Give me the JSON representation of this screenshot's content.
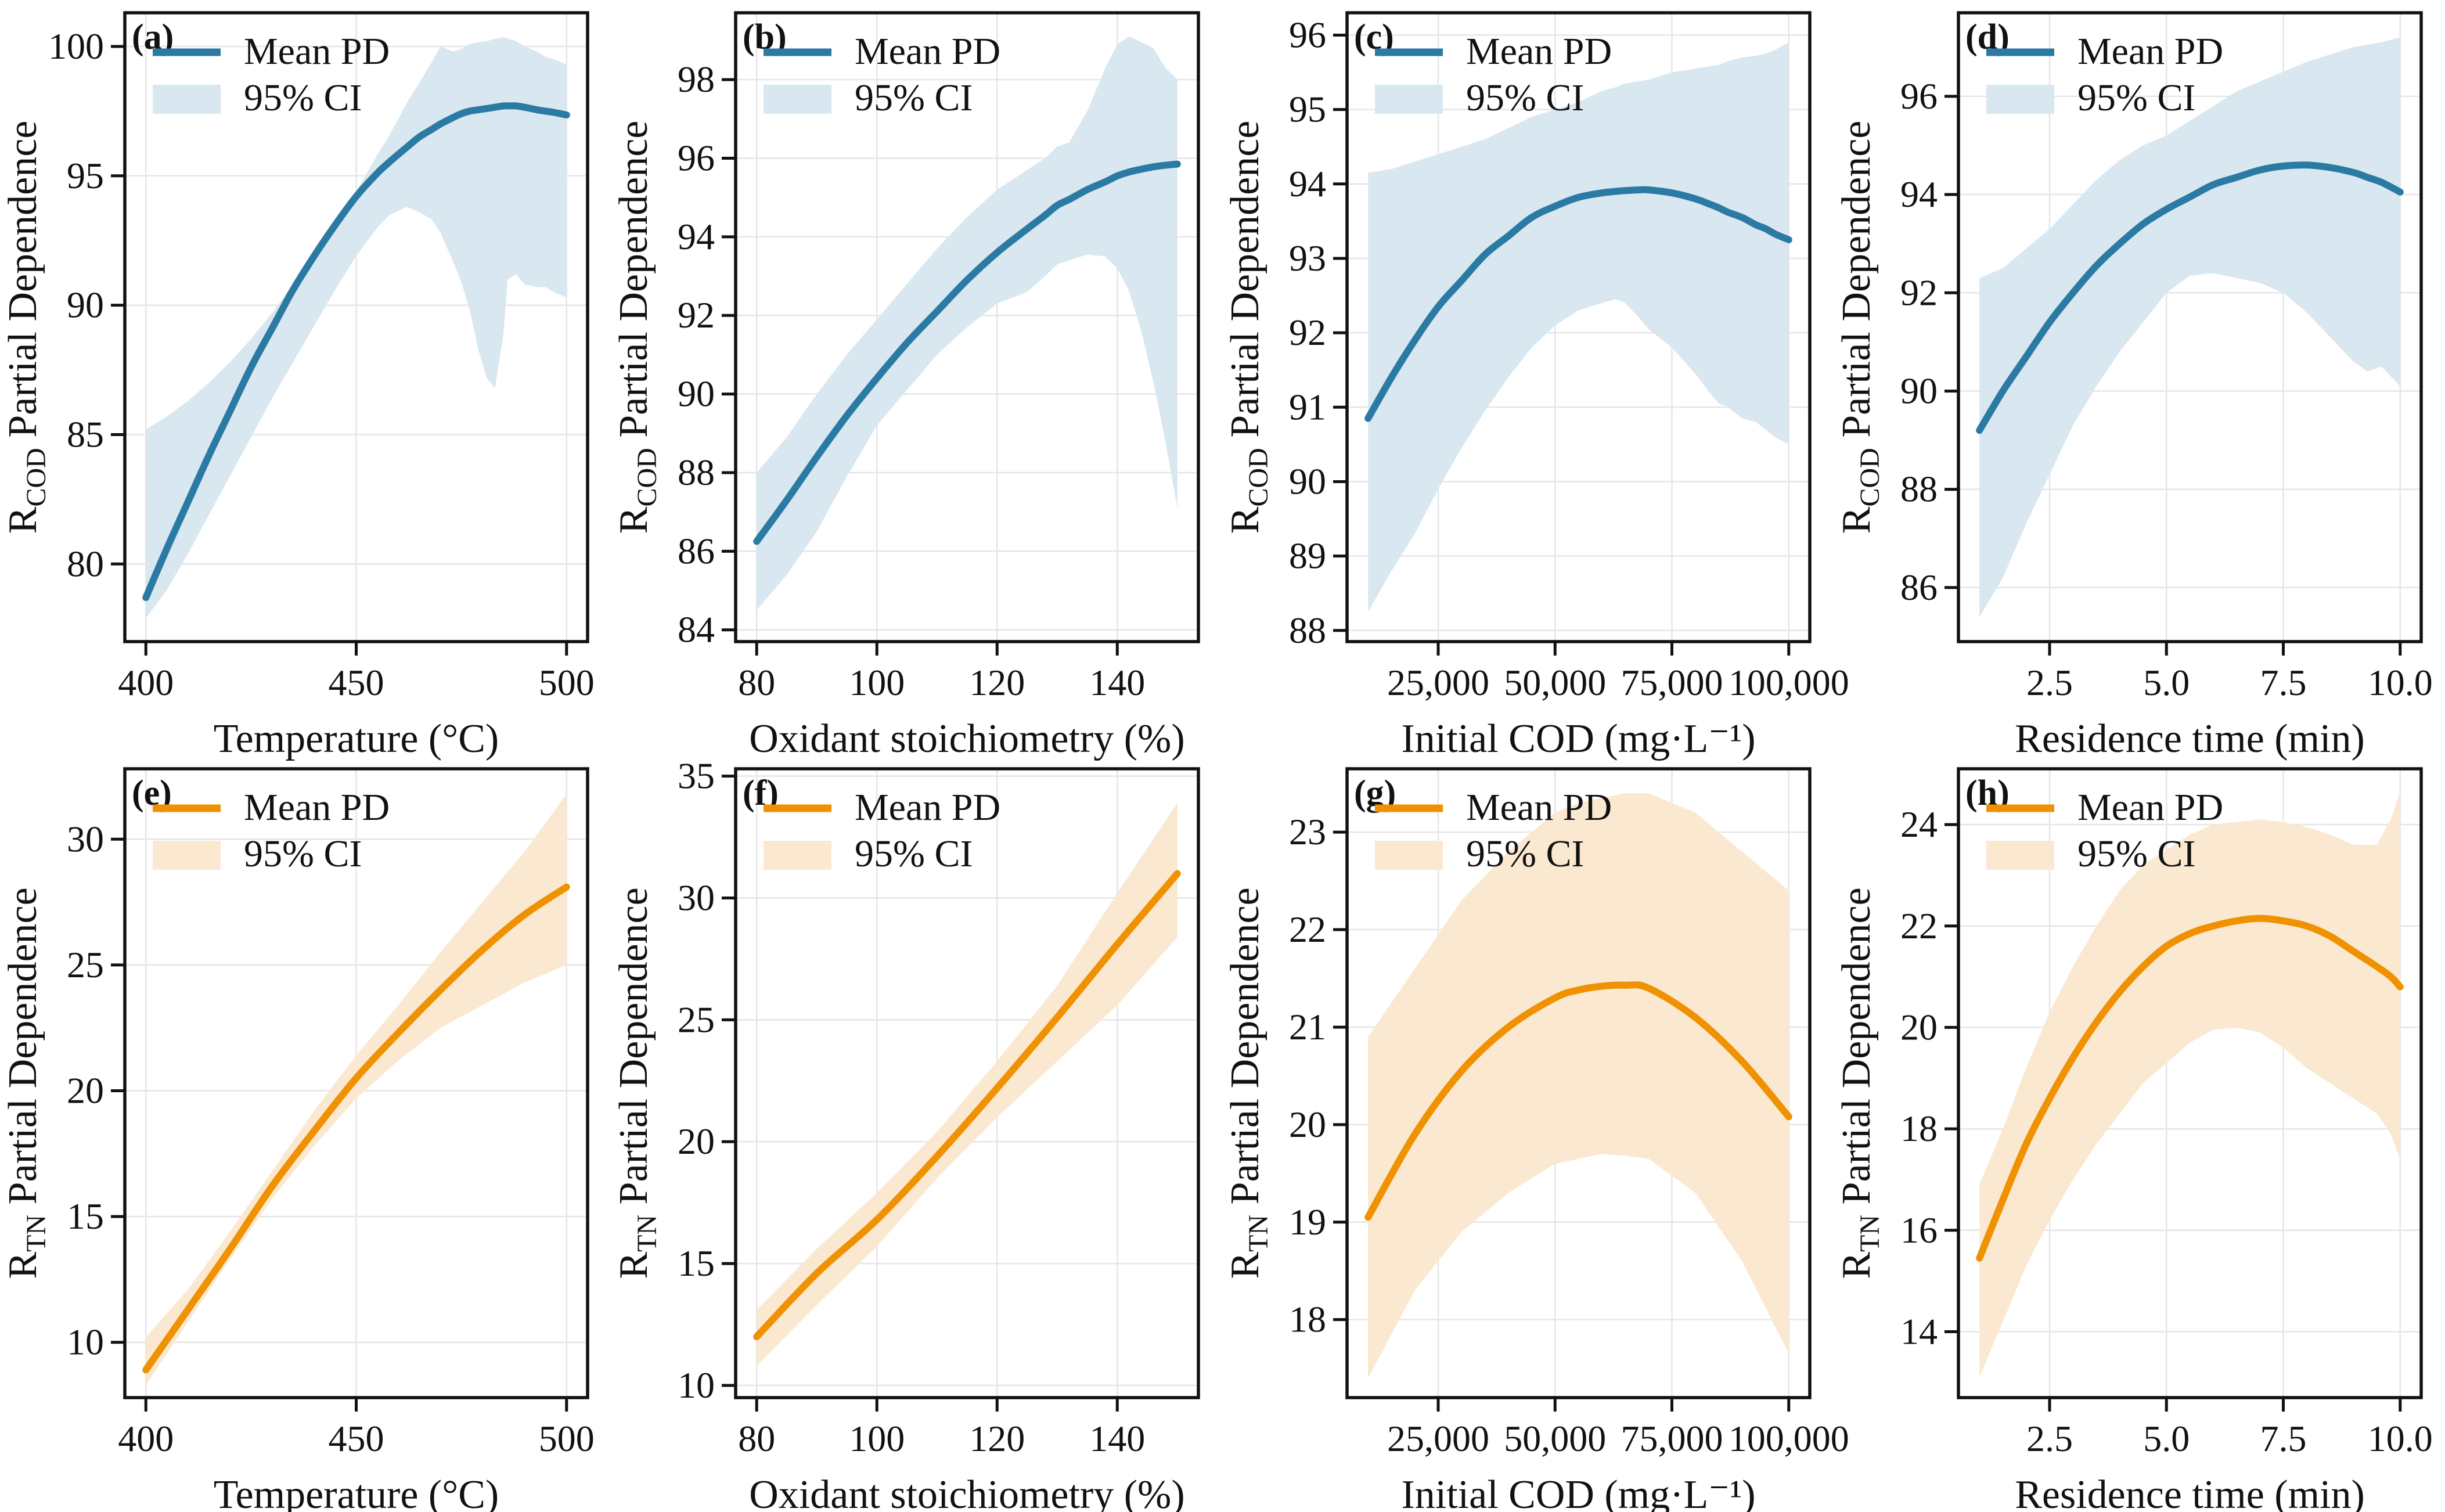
{
  "figure": {
    "background": "#ffffff",
    "colors": {
      "blue_line": "#2b7aa3",
      "blue_band": "#d9e7f0",
      "orange_line": "#ef9100",
      "orange_band": "#fae8d0",
      "grid": "#e6e6e6",
      "spine": "#111111",
      "text": "#111111"
    },
    "legend": {
      "mean_label": "Mean PD",
      "ci_label": "95% CI"
    }
  },
  "chart_data": [
    {
      "id": "a",
      "type": "line",
      "panel_label": "(a)",
      "palette": "blue",
      "xlabel": "Temperature (°C)",
      "ylabel_prefix": "R",
      "ylabel_sub": "COD",
      "ylabel_suffix": " Partial Dependence",
      "legend": [
        "Mean PD",
        "95% CI"
      ],
      "legend_position": "upper left",
      "grid": true,
      "xlim": [
        395,
        505
      ],
      "ylim": [
        77.0,
        101.3
      ],
      "xticks": [
        [
          400,
          "400"
        ],
        [
          450,
          "450"
        ],
        [
          500,
          "500"
        ]
      ],
      "yticks": [
        [
          80,
          "80"
        ],
        [
          85,
          "85"
        ],
        [
          90,
          "90"
        ],
        [
          95,
          "95"
        ],
        [
          100,
          "100"
        ]
      ],
      "x": [
        400,
        405,
        410,
        415,
        420,
        425,
        430,
        435,
        440,
        445,
        450,
        455,
        458,
        462,
        465,
        468,
        470,
        473,
        475,
        477,
        479,
        481,
        483,
        485,
        486,
        488,
        490,
        493,
        495,
        497,
        500
      ],
      "mean": [
        78.7,
        80.6,
        82.4,
        84.2,
        85.9,
        87.6,
        89.1,
        90.6,
        91.9,
        93.1,
        94.2,
        95.1,
        95.55,
        96.1,
        96.5,
        96.8,
        97.0,
        97.25,
        97.4,
        97.5,
        97.55,
        97.6,
        97.65,
        97.7,
        97.7,
        97.7,
        97.65,
        97.55,
        97.5,
        97.45,
        97.35
      ],
      "lower": [
        77.9,
        79.0,
        80.4,
        81.9,
        83.4,
        84.9,
        86.4,
        87.8,
        89.2,
        90.6,
        91.9,
        93.0,
        93.5,
        93.8,
        93.6,
        93.3,
        92.8,
        91.7,
        90.9,
        89.8,
        88.3,
        87.2,
        86.8,
        88.9,
        91.0,
        91.2,
        90.8,
        90.7,
        90.7,
        90.5,
        90.3
      ],
      "upper": [
        85.2,
        85.7,
        86.3,
        87.0,
        87.8,
        88.7,
        89.7,
        90.8,
        91.9,
        93.1,
        94.4,
        95.8,
        96.6,
        97.8,
        98.6,
        99.4,
        100.0,
        99.8,
        99.9,
        100.1,
        100.15,
        100.2,
        100.3,
        100.35,
        100.3,
        100.2,
        100.0,
        99.8,
        99.6,
        99.5,
        99.3
      ]
    },
    {
      "id": "b",
      "type": "line",
      "panel_label": "(b)",
      "palette": "blue",
      "xlabel": "Oxidant stoichiometry (%)",
      "ylabel_prefix": "R",
      "ylabel_sub": "COD",
      "ylabel_suffix": " Partial Dependence",
      "legend": [
        "Mean PD",
        "95% CI"
      ],
      "legend_position": "upper left",
      "grid": true,
      "xlim": [
        76.5,
        153.5
      ],
      "ylim": [
        83.7,
        99.7
      ],
      "xticks": [
        [
          80,
          "80"
        ],
        [
          100,
          "100"
        ],
        [
          120,
          "120"
        ],
        [
          140,
          "140"
        ]
      ],
      "yticks": [
        [
          84,
          "84"
        ],
        [
          86,
          "86"
        ],
        [
          88,
          "88"
        ],
        [
          90,
          "90"
        ],
        [
          92,
          "92"
        ],
        [
          94,
          "94"
        ],
        [
          96,
          "96"
        ],
        [
          98,
          "98"
        ]
      ],
      "x": [
        80,
        85,
        90,
        95,
        100,
        105,
        110,
        115,
        120,
        125,
        128,
        130,
        132,
        135,
        138,
        140,
        142,
        144,
        146,
        148,
        150
      ],
      "mean": [
        86.25,
        87.3,
        88.4,
        89.45,
        90.4,
        91.3,
        92.1,
        92.9,
        93.6,
        94.2,
        94.55,
        94.8,
        94.95,
        95.2,
        95.4,
        95.55,
        95.65,
        95.72,
        95.78,
        95.82,
        95.85
      ],
      "lower": [
        84.5,
        85.4,
        86.5,
        87.9,
        89.2,
        90.1,
        91.0,
        91.7,
        92.3,
        92.6,
        93.0,
        93.3,
        93.4,
        93.55,
        93.5,
        93.2,
        92.6,
        91.6,
        90.3,
        88.8,
        87.1
      ],
      "upper": [
        88.0,
        88.9,
        90.0,
        91.0,
        91.9,
        92.8,
        93.7,
        94.5,
        95.2,
        95.7,
        96.0,
        96.3,
        96.4,
        97.2,
        98.3,
        98.9,
        99.1,
        98.95,
        98.8,
        98.3,
        98.0
      ]
    },
    {
      "id": "c",
      "type": "line",
      "panel_label": "(c)",
      "palette": "blue",
      "xlabel": "Initial COD (mg·L⁻¹)",
      "ylabel_prefix": "R",
      "ylabel_sub": "COD",
      "ylabel_suffix": " Partial Dependence",
      "legend": [
        "Mean PD",
        "95% CI"
      ],
      "legend_position": "upper left",
      "grid": true,
      "xlim": [
        5500,
        104500
      ],
      "ylim": [
        87.85,
        96.3
      ],
      "xticks": [
        [
          25000,
          "25,000"
        ],
        [
          50000,
          "50,000"
        ],
        [
          75000,
          "75,000"
        ],
        [
          100000,
          "100,000"
        ]
      ],
      "yticks": [
        [
          88,
          "88"
        ],
        [
          89,
          "89"
        ],
        [
          90,
          "90"
        ],
        [
          91,
          "91"
        ],
        [
          92,
          "92"
        ],
        [
          93,
          "93"
        ],
        [
          94,
          "94"
        ],
        [
          95,
          "95"
        ],
        [
          96,
          "96"
        ]
      ],
      "x": [
        10000,
        15000,
        20000,
        25000,
        30000,
        35000,
        40000,
        45000,
        50000,
        55000,
        60000,
        63000,
        65000,
        68000,
        70000,
        75000,
        80000,
        83000,
        85000,
        87000,
        90000,
        93000,
        95000,
        97000,
        100000
      ],
      "mean": [
        90.85,
        91.4,
        91.9,
        92.35,
        92.7,
        93.05,
        93.3,
        93.55,
        93.7,
        93.82,
        93.88,
        93.9,
        93.91,
        93.92,
        93.92,
        93.88,
        93.8,
        93.73,
        93.68,
        93.62,
        93.55,
        93.45,
        93.4,
        93.33,
        93.25
      ],
      "lower": [
        88.25,
        88.8,
        89.3,
        89.9,
        90.45,
        90.95,
        91.4,
        91.8,
        92.1,
        92.3,
        92.4,
        92.45,
        92.4,
        92.2,
        92.05,
        91.8,
        91.45,
        91.2,
        91.05,
        91.0,
        90.85,
        90.8,
        90.7,
        90.6,
        90.5
      ],
      "upper": [
        94.15,
        94.2,
        94.3,
        94.4,
        94.5,
        94.6,
        94.75,
        94.9,
        95.0,
        95.1,
        95.25,
        95.3,
        95.35,
        95.38,
        95.4,
        95.5,
        95.55,
        95.58,
        95.6,
        95.65,
        95.7,
        95.72,
        95.75,
        95.8,
        95.9
      ]
    },
    {
      "id": "d",
      "type": "line",
      "panel_label": "(d)",
      "palette": "blue",
      "xlabel": "Residence time (min)",
      "ylabel_prefix": "R",
      "ylabel_sub": "COD",
      "ylabel_suffix": " Partial Dependence",
      "legend": [
        "Mean PD",
        "95% CI"
      ],
      "legend_position": "upper left",
      "grid": true,
      "xlim": [
        0.55,
        10.45
      ],
      "ylim": [
        84.9,
        97.7
      ],
      "xticks": [
        [
          2.5,
          "2.5"
        ],
        [
          5.0,
          "5.0"
        ],
        [
          7.5,
          "7.5"
        ],
        [
          10.0,
          "10.0"
        ]
      ],
      "yticks": [
        [
          86,
          "86"
        ],
        [
          88,
          "88"
        ],
        [
          90,
          "90"
        ],
        [
          92,
          "92"
        ],
        [
          94,
          "94"
        ],
        [
          96,
          "96"
        ]
      ],
      "x": [
        1,
        1.5,
        2,
        2.5,
        3,
        3.5,
        4,
        4.5,
        5,
        5.5,
        6,
        6.5,
        7,
        7.5,
        8,
        8.5,
        9,
        9.3,
        9.6,
        10
      ],
      "mean": [
        89.2,
        90.0,
        90.7,
        91.4,
        92.0,
        92.55,
        93.0,
        93.4,
        93.7,
        93.95,
        94.2,
        94.35,
        94.5,
        94.58,
        94.6,
        94.55,
        94.45,
        94.35,
        94.25,
        94.05
      ],
      "lower": [
        85.4,
        86.2,
        87.3,
        88.3,
        89.3,
        90.1,
        90.8,
        91.4,
        92.0,
        92.35,
        92.4,
        92.3,
        92.2,
        92.0,
        91.6,
        91.1,
        90.6,
        90.4,
        90.5,
        90.1
      ],
      "upper": [
        92.3,
        92.5,
        92.9,
        93.3,
        93.8,
        94.3,
        94.7,
        95.0,
        95.2,
        95.5,
        95.8,
        96.1,
        96.3,
        96.5,
        96.7,
        96.85,
        97.0,
        97.05,
        97.1,
        97.2
      ]
    },
    {
      "id": "e",
      "type": "line",
      "panel_label": "(e)",
      "palette": "orange",
      "xlabel": "Temperature (°C)",
      "ylabel_prefix": "R",
      "ylabel_sub": "TN",
      "ylabel_suffix": " Partial Dependence",
      "legend": [
        "Mean PD",
        "95% CI"
      ],
      "legend_position": "upper left",
      "grid": true,
      "xlim": [
        395,
        505
      ],
      "ylim": [
        7.8,
        32.8
      ],
      "xticks": [
        [
          400,
          "400"
        ],
        [
          450,
          "450"
        ],
        [
          500,
          "500"
        ]
      ],
      "yticks": [
        [
          10,
          "10"
        ],
        [
          15,
          "15"
        ],
        [
          20,
          "20"
        ],
        [
          25,
          "25"
        ],
        [
          30,
          "30"
        ]
      ],
      "x": [
        400,
        410,
        420,
        430,
        440,
        450,
        460,
        470,
        480,
        490,
        500
      ],
      "mean": [
        8.9,
        11.3,
        13.7,
        16.2,
        18.4,
        20.5,
        22.3,
        24.0,
        25.6,
        27.0,
        28.1
      ],
      "lower": [
        8.3,
        10.8,
        13.3,
        15.7,
        17.8,
        19.7,
        21.2,
        22.5,
        23.4,
        24.3,
        25.0
      ],
      "upper": [
        10.2,
        12.1,
        14.4,
        16.8,
        19.2,
        21.4,
        23.4,
        25.5,
        27.5,
        29.5,
        31.8
      ]
    },
    {
      "id": "f",
      "type": "line",
      "panel_label": "(f)",
      "palette": "orange",
      "xlabel": "Oxidant stoichiometry (%)",
      "ylabel_prefix": "R",
      "ylabel_sub": "TN",
      "ylabel_suffix": " Partial Dependence",
      "legend": [
        "Mean PD",
        "95% CI"
      ],
      "legend_position": "upper left",
      "grid": true,
      "xlim": [
        76.5,
        153.5
      ],
      "ylim": [
        9.5,
        35.3
      ],
      "xticks": [
        [
          80,
          "80"
        ],
        [
          100,
          "100"
        ],
        [
          120,
          "120"
        ],
        [
          140,
          "140"
        ]
      ],
      "yticks": [
        [
          10,
          "10"
        ],
        [
          15,
          "15"
        ],
        [
          20,
          "20"
        ],
        [
          25,
          "25"
        ],
        [
          30,
          "30"
        ],
        [
          35,
          "35"
        ]
      ],
      "x": [
        80,
        90,
        100,
        110,
        120,
        130,
        140,
        150
      ],
      "mean": [
        12.0,
        14.6,
        16.8,
        19.4,
        22.2,
        25.1,
        28.1,
        31.0
      ],
      "lower": [
        10.8,
        13.3,
        15.7,
        18.5,
        21.0,
        23.3,
        25.6,
        28.4
      ],
      "upper": [
        13.1,
        15.6,
        17.9,
        20.4,
        23.3,
        26.4,
        30.2,
        33.9
      ]
    },
    {
      "id": "g",
      "type": "line",
      "panel_label": "(g)",
      "palette": "orange",
      "xlabel": "Initial COD (mg·L⁻¹)",
      "ylabel_prefix": "R",
      "ylabel_sub": "TN",
      "ylabel_suffix": " Partial Dependence",
      "legend": [
        "Mean PD",
        "95% CI"
      ],
      "legend_position": "upper left",
      "grid": true,
      "xlim": [
        5500,
        104500
      ],
      "ylim": [
        17.2,
        23.65
      ],
      "xticks": [
        [
          25000,
          "25,000"
        ],
        [
          50000,
          "50,000"
        ],
        [
          75000,
          "75,000"
        ],
        [
          100000,
          "100,000"
        ]
      ],
      "yticks": [
        [
          18,
          "18"
        ],
        [
          19,
          "19"
        ],
        [
          20,
          "20"
        ],
        [
          21,
          "21"
        ],
        [
          22,
          "22"
        ],
        [
          23,
          "23"
        ]
      ],
      "x": [
        10000,
        20000,
        30000,
        40000,
        50000,
        55000,
        60000,
        65000,
        70000,
        80000,
        90000,
        100000
      ],
      "mean": [
        19.05,
        19.9,
        20.55,
        21.0,
        21.3,
        21.38,
        21.42,
        21.43,
        21.4,
        21.1,
        20.65,
        20.08
      ],
      "lower": [
        17.4,
        18.3,
        18.9,
        19.3,
        19.6,
        19.65,
        19.7,
        19.68,
        19.65,
        19.3,
        18.6,
        17.65
      ],
      "upper": [
        20.9,
        21.6,
        22.3,
        22.8,
        23.2,
        23.3,
        23.35,
        23.4,
        23.4,
        23.2,
        22.8,
        22.4
      ]
    },
    {
      "id": "h",
      "type": "line",
      "panel_label": "(h)",
      "palette": "orange",
      "xlabel": "Residence time (min)",
      "ylabel_prefix": "R",
      "ylabel_sub": "TN",
      "ylabel_suffix": " Partial Dependence",
      "legend": [
        "Mean PD",
        "95% CI"
      ],
      "legend_position": "upper left",
      "grid": true,
      "xlim": [
        0.55,
        10.45
      ],
      "ylim": [
        12.7,
        25.1
      ],
      "xticks": [
        [
          2.5,
          "2.5"
        ],
        [
          5.0,
          "5.0"
        ],
        [
          7.5,
          "7.5"
        ],
        [
          10.0,
          "10.0"
        ]
      ],
      "yticks": [
        [
          14,
          "14"
        ],
        [
          16,
          "16"
        ],
        [
          18,
          "18"
        ],
        [
          20,
          "20"
        ],
        [
          22,
          "22"
        ],
        [
          24,
          "24"
        ]
      ],
      "x": [
        1,
        1.5,
        2,
        2.5,
        3,
        3.5,
        4,
        4.5,
        5,
        5.5,
        6,
        6.5,
        7,
        7.5,
        8,
        8.5,
        9,
        9.5,
        9.8,
        10
      ],
      "mean": [
        15.45,
        16.6,
        17.7,
        18.6,
        19.4,
        20.1,
        20.7,
        21.2,
        21.6,
        21.85,
        22.0,
        22.1,
        22.15,
        22.1,
        22.0,
        21.8,
        21.5,
        21.2,
        21.0,
        20.8
      ],
      "lower": [
        13.1,
        14.2,
        15.3,
        16.2,
        17.0,
        17.7,
        18.3,
        18.9,
        19.3,
        19.7,
        19.95,
        20.0,
        19.9,
        19.6,
        19.2,
        18.9,
        18.6,
        18.3,
        17.9,
        17.4
      ],
      "upper": [
        16.9,
        18.0,
        19.2,
        20.3,
        21.2,
        22.0,
        22.7,
        23.2,
        23.5,
        23.8,
        24.0,
        24.05,
        24.1,
        24.05,
        23.95,
        23.8,
        23.6,
        23.6,
        24.1,
        24.65
      ]
    }
  ]
}
